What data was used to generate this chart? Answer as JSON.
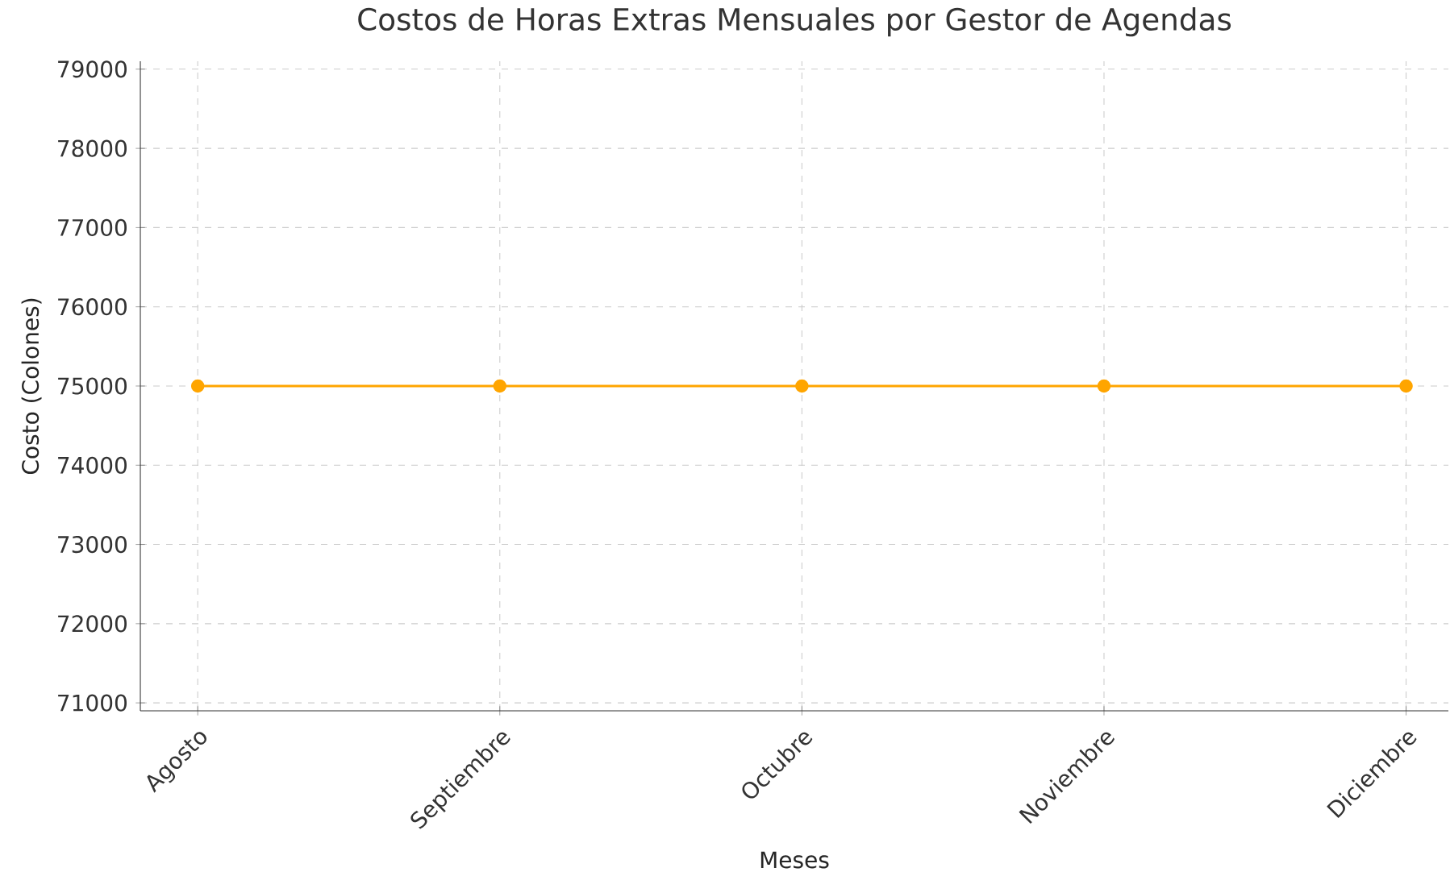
{
  "chart_data": {
    "type": "line",
    "title": "Costos de Horas Extras Mensuales por Gestor de Agendas",
    "xlabel": "Meses",
    "ylabel": "Costo (Colones)",
    "categories": [
      "Agosto",
      "Septiembre",
      "Octubre",
      "Noviembre",
      "Diciembre"
    ],
    "series": [
      {
        "color": "#ffa500",
        "values": [
          75000,
          75000,
          75000,
          75000,
          75000
        ]
      }
    ],
    "ylim": [
      70900,
      79100
    ],
    "yticks": [
      71000,
      72000,
      73000,
      74000,
      75000,
      76000,
      77000,
      78000,
      79000
    ],
    "grid": true,
    "marker": "circle",
    "line_style": "solid"
  }
}
